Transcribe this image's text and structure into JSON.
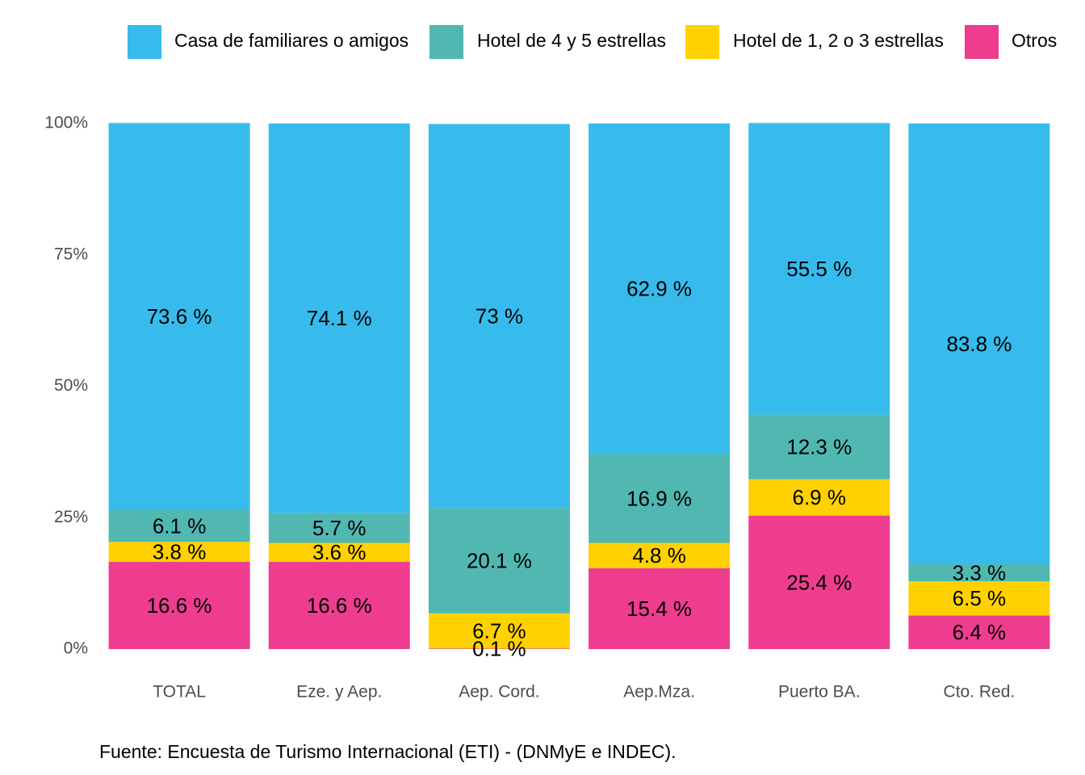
{
  "chart_data": {
    "type": "bar",
    "stacked": true,
    "categories": [
      "TOTAL",
      "Eze. y Aep.",
      "Aep. Cord.",
      "Aep.Mza.",
      "Puerto BA.",
      "Cto. Red."
    ],
    "series": [
      {
        "name": "Otros",
        "color": "#EE3D8F",
        "values": [
          16.6,
          16.6,
          0.1,
          15.4,
          25.4,
          6.4
        ],
        "labels": [
          "16.6 %",
          "16.6 %",
          "0.1 %",
          "15.4 %",
          "25.4 %",
          "6.4 %"
        ]
      },
      {
        "name": "Hotel de 1, 2 o 3 estrellas",
        "color": "#FFD100",
        "values": [
          3.8,
          3.6,
          6.7,
          4.8,
          6.9,
          6.5
        ],
        "labels": [
          "3.8 %",
          "3.6 %",
          "6.7 %",
          "4.8 %",
          "6.9 %",
          "6.5 %"
        ]
      },
      {
        "name": "Hotel de 4 y 5 estrellas",
        "color": "#50B8B1",
        "values": [
          6.1,
          5.7,
          20.1,
          16.9,
          12.3,
          3.3
        ],
        "labels": [
          "6.1 %",
          "5.7 %",
          "20.1 %",
          "16.9 %",
          "12.3 %",
          "3.3 %"
        ]
      },
      {
        "name": "Casa de familiares o amigos",
        "color": "#37BBED",
        "values": [
          73.6,
          74.1,
          73,
          62.9,
          55.5,
          83.8
        ],
        "labels": [
          "73.6 %",
          "74.1 %",
          "73 %",
          "62.9 %",
          "55.5 %",
          "83.8 %"
        ]
      }
    ],
    "legend_order": [
      "Casa de familiares o amigos",
      "Hotel de 4 y 5 estrellas",
      "Hotel de 1, 2 o 3 estrellas",
      "Otros"
    ],
    "legend_position": "top",
    "y_ticks": [
      0,
      25,
      50,
      75,
      100
    ],
    "y_tick_labels": [
      "0%",
      "25%",
      "50%",
      "75%",
      "100%"
    ],
    "ylim": [
      0,
      100
    ],
    "grid": false,
    "caption": "Fuente: Encuesta de Turismo Internacional (ETI) - (DNMyE e INDEC)."
  }
}
